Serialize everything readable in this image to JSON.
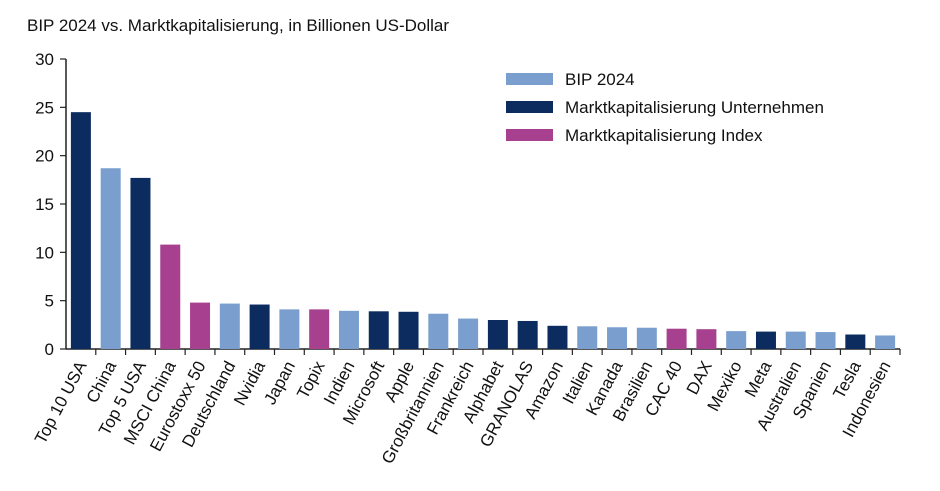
{
  "chart_data": {
    "type": "bar",
    "title": "BIP 2024 vs. Marktkapitalisierung, in Billionen US-Dollar",
    "xlabel": "",
    "ylabel": "",
    "ylim": [
      0,
      30
    ],
    "yticks": [
      0,
      5,
      10,
      15,
      20,
      25,
      30
    ],
    "grid": false,
    "legend_position": "top-right",
    "legend": [
      {
        "name": "BIP 2024",
        "color": "#7a9fcf"
      },
      {
        "name": "Marktkapitalisierung Unternehmen",
        "color": "#0c2c5f"
      },
      {
        "name": "Marktkapitalisierung Index",
        "color": "#a7418f"
      }
    ],
    "categories": [
      "Top 10 USA",
      "China",
      "Top 5 USA",
      "MSCI China",
      "Eurostoxx 50",
      "Deutschland",
      "Nvidia",
      "Japan",
      "Topix",
      "Indien",
      "Microsoft",
      "Apple",
      "Großbritannien",
      "Frankreich",
      "Alphabet",
      "GRANOLAS",
      "Amazon",
      "Italien",
      "Kanada",
      "Brasilien",
      "CAC 40",
      "DAX",
      "Mexiko",
      "Meta",
      "Australien",
      "Spanien",
      "Tesla",
      "Indonesien"
    ],
    "values": [
      24.5,
      18.7,
      17.7,
      10.8,
      4.8,
      4.7,
      4.6,
      4.1,
      4.1,
      3.95,
      3.9,
      3.85,
      3.65,
      3.15,
      3.0,
      2.9,
      2.4,
      2.35,
      2.25,
      2.2,
      2.1,
      2.05,
      1.85,
      1.8,
      1.8,
      1.75,
      1.5,
      1.4
    ],
    "groups": [
      "Marktkapitalisierung Unternehmen",
      "BIP 2024",
      "Marktkapitalisierung Unternehmen",
      "Marktkapitalisierung Index",
      "Marktkapitalisierung Index",
      "BIP 2024",
      "Marktkapitalisierung Unternehmen",
      "BIP 2024",
      "Marktkapitalisierung Index",
      "BIP 2024",
      "Marktkapitalisierung Unternehmen",
      "Marktkapitalisierung Unternehmen",
      "BIP 2024",
      "BIP 2024",
      "Marktkapitalisierung Unternehmen",
      "Marktkapitalisierung Unternehmen",
      "Marktkapitalisierung Unternehmen",
      "BIP 2024",
      "BIP 2024",
      "BIP 2024",
      "Marktkapitalisierung Index",
      "Marktkapitalisierung Index",
      "BIP 2024",
      "Marktkapitalisierung Unternehmen",
      "BIP 2024",
      "BIP 2024",
      "Marktkapitalisierung Unternehmen",
      "BIP 2024"
    ]
  }
}
